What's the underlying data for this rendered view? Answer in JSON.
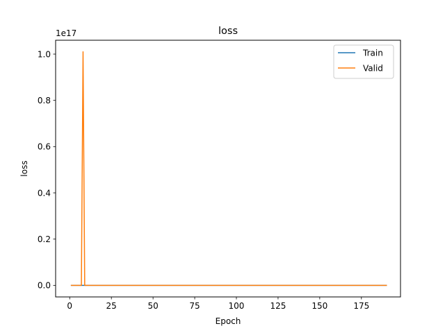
{
  "chart_data": {
    "type": "line",
    "title": "loss",
    "xlabel": "Epoch",
    "ylabel": "loss",
    "offset_text": "1e17",
    "xlim": [
      -8.45,
      198.45
    ],
    "ylim": [
      -0.05,
      1.06
    ],
    "y_scale_multiplier": 1e+17,
    "x_ticks": [
      0,
      25,
      50,
      75,
      100,
      125,
      150,
      175
    ],
    "y_ticks": [
      0.0,
      0.2,
      0.4,
      0.6,
      0.8,
      1.0
    ],
    "y_tick_labels": [
      "0.0",
      "0.2",
      "0.4",
      "0.6",
      "0.8",
      "1.0"
    ],
    "grid": false,
    "legend_position": "upper right",
    "series": [
      {
        "name": "Train",
        "color": "#1f77b4",
        "x": [
          1,
          7,
          8,
          9,
          190
        ],
        "y": [
          0,
          0,
          0,
          0,
          0
        ]
      },
      {
        "name": "Valid",
        "color": "#ff7f0e",
        "x": [
          1,
          6,
          7,
          8,
          9,
          10,
          190
        ],
        "y": [
          0,
          0,
          0,
          1.01,
          0,
          0,
          0
        ]
      }
    ]
  }
}
